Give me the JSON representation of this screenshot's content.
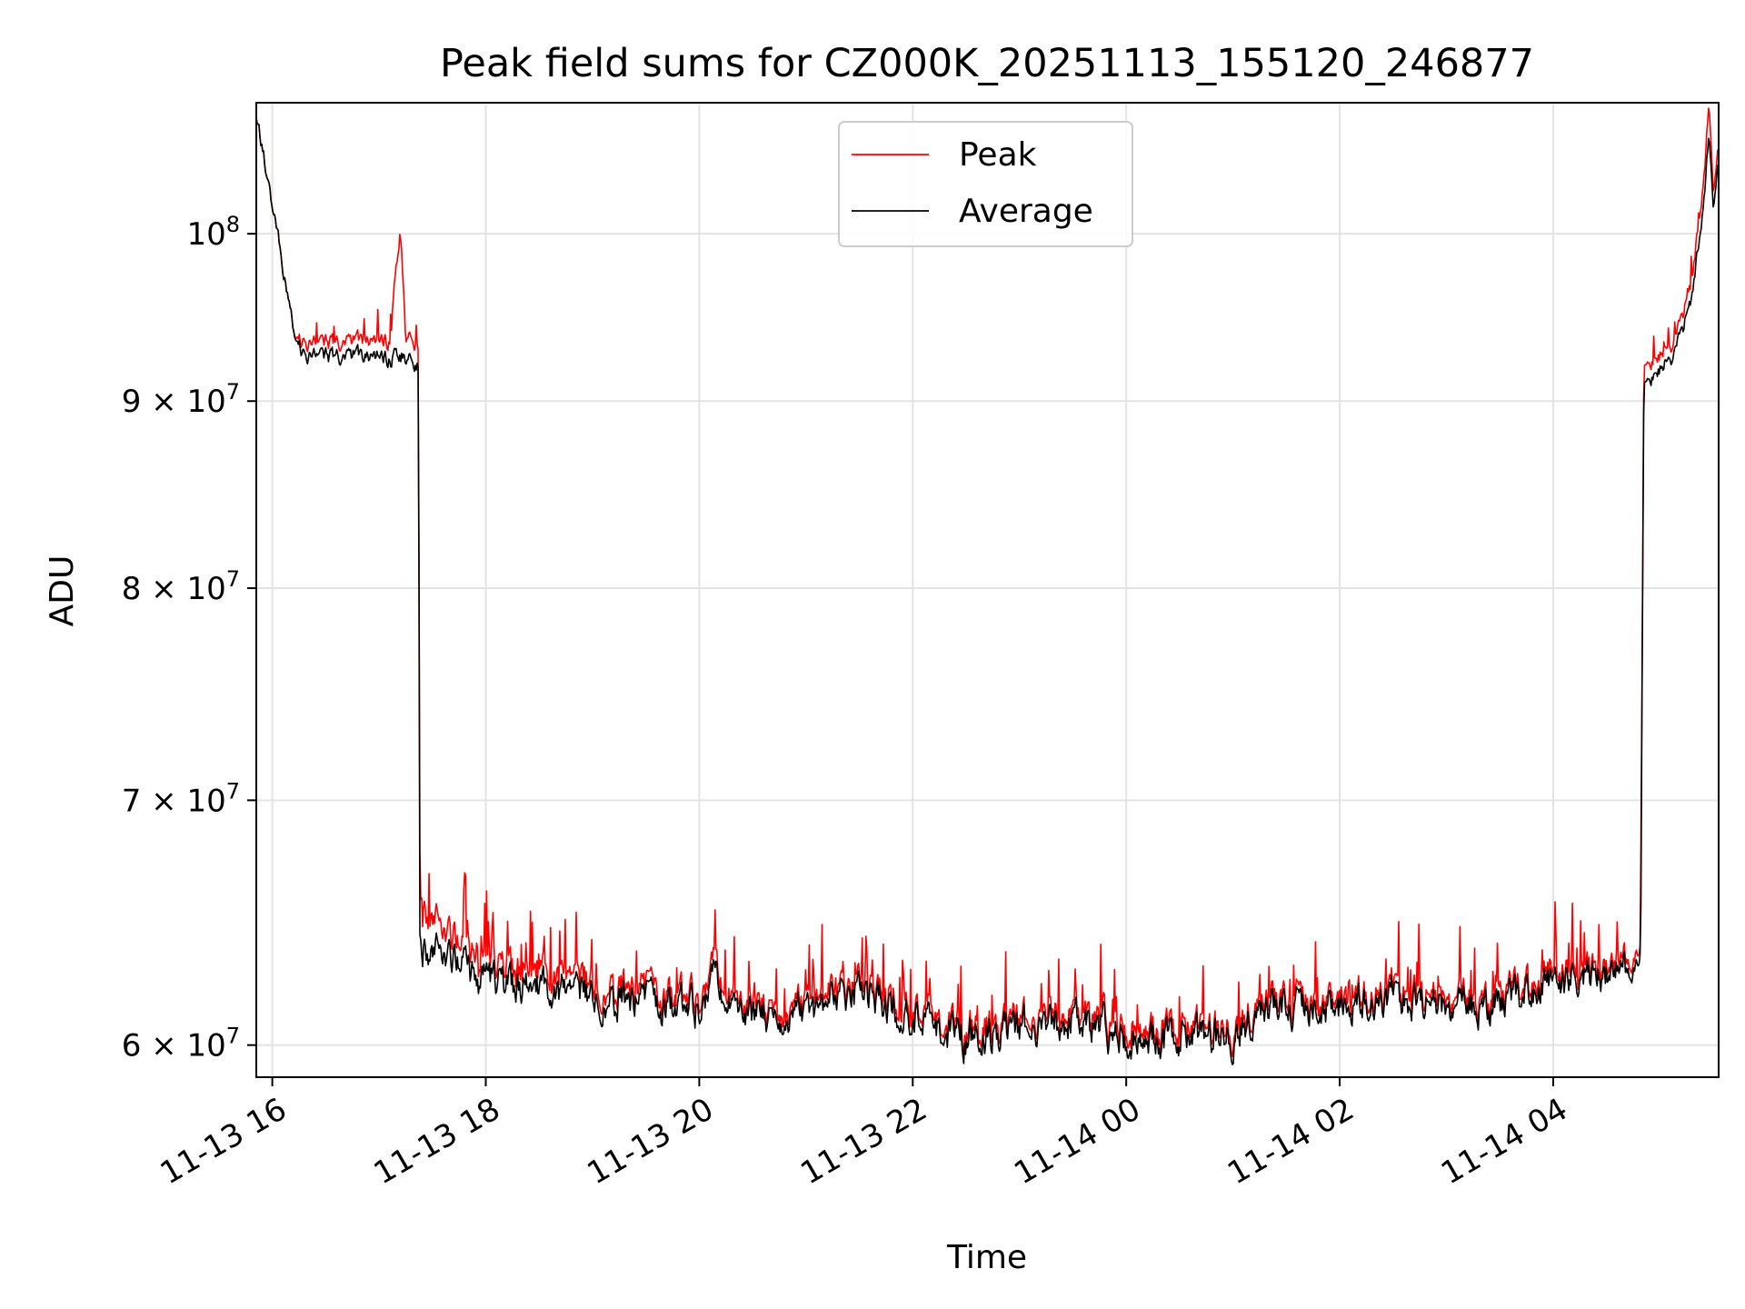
{
  "chart_data": {
    "type": "line",
    "title": "Peak field sums for CZ000K_20251113_155120_246877",
    "xlabel": "Time",
    "ylabel": "ADU",
    "x_unit": "hours since 11-13 00:00",
    "xlim": [
      15.85,
      29.55
    ],
    "ylim_log": [
      58800000,
      108600000
    ],
    "grid": true,
    "legend_position": "upper center",
    "x_ticks": [
      {
        "value": 16,
        "label": "11-13 16"
      },
      {
        "value": 18,
        "label": "11-13 18"
      },
      {
        "value": 20,
        "label": "11-13 20"
      },
      {
        "value": 22,
        "label": "11-13 22"
      },
      {
        "value": 24,
        "label": "11-14 00"
      },
      {
        "value": 26,
        "label": "11-14 02"
      },
      {
        "value": 28,
        "label": "11-14 04"
      }
    ],
    "y_ticks": [
      {
        "value": 60000000,
        "mant": "6",
        "exp": "7"
      },
      {
        "value": 70000000,
        "mant": "7",
        "exp": "7"
      },
      {
        "value": 80000000,
        "mant": "8",
        "exp": "7"
      },
      {
        "value": 90000000,
        "mant": "9",
        "exp": "7"
      },
      {
        "value": 100000000,
        "mant": "",
        "exp": "8"
      }
    ],
    "y_tick_base": "10",
    "y_tick_times": "×",
    "series": [
      {
        "name": "Peak",
        "color": "#ff0000",
        "anchors": [
          [
            15.85,
            107500000
          ],
          [
            15.95,
            103800000
          ],
          [
            16.05,
            100000000
          ],
          [
            16.15,
            96000000
          ],
          [
            16.2,
            94000000
          ],
          [
            16.3,
            93200000
          ],
          [
            16.6,
            93300000
          ],
          [
            16.9,
            93500000
          ],
          [
            17.1,
            93400000
          ],
          [
            17.2,
            100300000
          ],
          [
            17.25,
            93800000
          ],
          [
            17.35,
            93500000
          ],
          [
            17.37,
            93000000
          ],
          [
            17.38,
            65500000
          ],
          [
            17.6,
            64500000
          ],
          [
            18.0,
            63000000
          ],
          [
            18.5,
            62800000
          ],
          [
            19.0,
            62300000
          ],
          [
            19.5,
            62000000
          ],
          [
            20.0,
            61700000
          ],
          [
            20.15,
            63500000
          ],
          [
            20.3,
            61500000
          ],
          [
            21.0,
            61500000
          ],
          [
            21.5,
            62300000
          ],
          [
            22.0,
            61500000
          ],
          [
            22.5,
            60500000
          ],
          [
            23.0,
            61000000
          ],
          [
            23.5,
            61300000
          ],
          [
            24.0,
            60700000
          ],
          [
            24.5,
            60500000
          ],
          [
            25.0,
            60700000
          ],
          [
            25.3,
            61800000
          ],
          [
            26.0,
            61800000
          ],
          [
            26.5,
            62300000
          ],
          [
            27.0,
            61500000
          ],
          [
            27.5,
            62000000
          ],
          [
            28.0,
            62600000
          ],
          [
            28.5,
            63100000
          ],
          [
            28.82,
            63400000
          ],
          [
            28.85,
            92000000
          ],
          [
            29.0,
            92800000
          ],
          [
            29.15,
            93500000
          ],
          [
            29.3,
            97000000
          ],
          [
            29.42,
            104000000
          ],
          [
            29.46,
            108600000
          ],
          [
            29.5,
            103000000
          ],
          [
            29.55,
            105500000
          ]
        ]
      },
      {
        "name": "Average",
        "color": "#000000",
        "anchors": [
          [
            15.85,
            107500000
          ],
          [
            15.95,
            103800000
          ],
          [
            16.05,
            100000000
          ],
          [
            16.15,
            96000000
          ],
          [
            16.2,
            94000000
          ],
          [
            16.3,
            92500000
          ],
          [
            16.6,
            92500000
          ],
          [
            16.9,
            92600000
          ],
          [
            17.1,
            92400000
          ],
          [
            17.2,
            92600000
          ],
          [
            17.25,
            92500000
          ],
          [
            17.35,
            92300000
          ],
          [
            17.37,
            92000000
          ],
          [
            17.38,
            63800000
          ],
          [
            17.6,
            63500000
          ],
          [
            18.0,
            62400000
          ],
          [
            18.5,
            62200000
          ],
          [
            19.0,
            61800000
          ],
          [
            19.5,
            61600000
          ],
          [
            20.0,
            61300000
          ],
          [
            20.15,
            63000000
          ],
          [
            20.3,
            61200000
          ],
          [
            21.0,
            61200000
          ],
          [
            21.5,
            62000000
          ],
          [
            22.0,
            61200000
          ],
          [
            22.5,
            60200000
          ],
          [
            23.0,
            60700000
          ],
          [
            23.5,
            61000000
          ],
          [
            24.0,
            60300000
          ],
          [
            24.5,
            60200000
          ],
          [
            25.0,
            60400000
          ],
          [
            25.3,
            61500000
          ],
          [
            26.0,
            61500000
          ],
          [
            26.5,
            62000000
          ],
          [
            27.0,
            61200000
          ],
          [
            27.5,
            61700000
          ],
          [
            28.0,
            62300000
          ],
          [
            28.5,
            62800000
          ],
          [
            28.82,
            63000000
          ],
          [
            28.85,
            91000000
          ],
          [
            29.0,
            92000000
          ],
          [
            29.15,
            92800000
          ],
          [
            29.3,
            96000000
          ],
          [
            29.42,
            102500000
          ],
          [
            29.46,
            106500000
          ],
          [
            29.5,
            102000000
          ],
          [
            29.55,
            104500000
          ]
        ]
      }
    ]
  }
}
